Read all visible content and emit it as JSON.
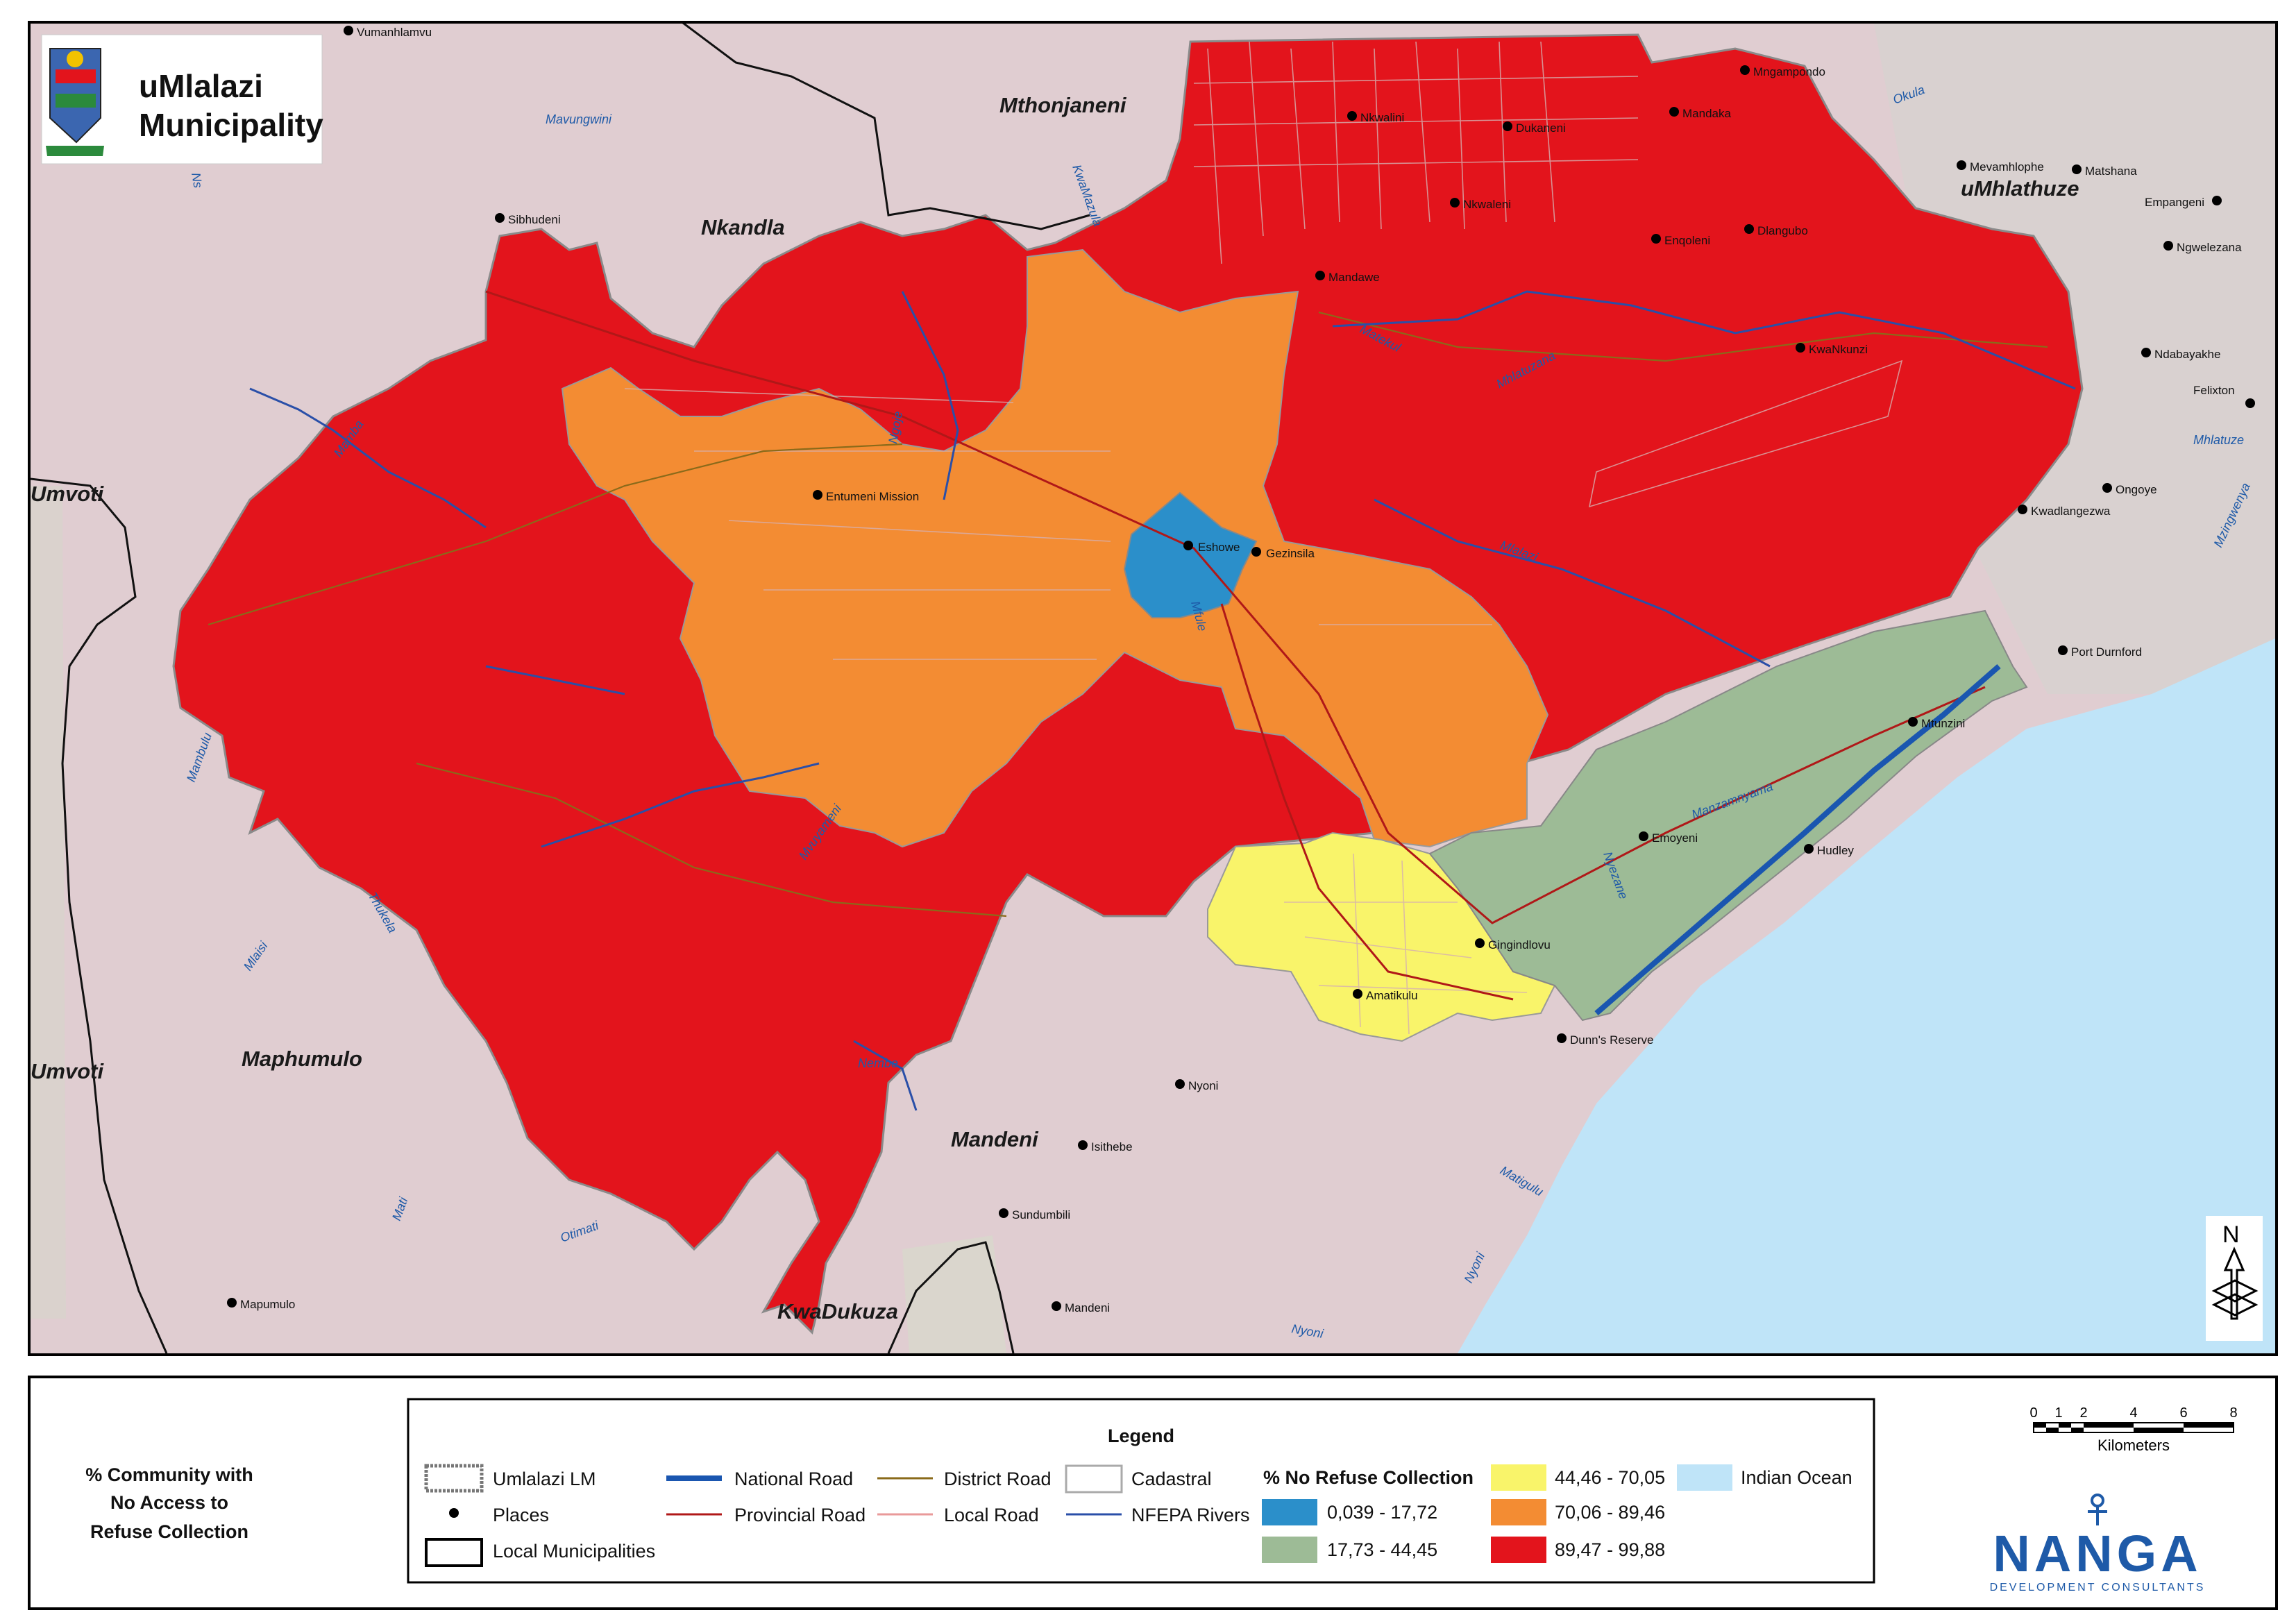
{
  "logo": {
    "title_line1": "uMlalazi",
    "title_line2": "Municipality"
  },
  "municipalities": [
    {
      "name": "Mthonjaneni"
    },
    {
      "name": "Nkandla"
    },
    {
      "name": "uMhlathuze"
    },
    {
      "name": "Umvoti"
    },
    {
      "name": "Umvoti"
    },
    {
      "name": "Maphumulo"
    },
    {
      "name": "Mandeni"
    },
    {
      "name": "KwaDukuza"
    }
  ],
  "places": [
    "Vumanhlamvu",
    "Sibhudeni",
    "Entumeni Mission",
    "Eshowe",
    "Gezinsila",
    "Mandawe",
    "Nkwalini",
    "Dukaneni",
    "Nkwaleni",
    "Mngampondo",
    "Mandaka",
    "Enqoleni",
    "Dlangubo",
    "KwaNkunzi",
    "Mevamhlophe",
    "Matshana",
    "Empangeni",
    "Ngwelezana",
    "Ndabayakhe",
    "Felixton",
    "Ongoye",
    "Kwadlangezwa",
    "Port Durnford",
    "Mtunzini",
    "Emoyeni",
    "Hudley",
    "Gingindlovu",
    "Amatikulu",
    "Dunn's Reserve",
    "Nyoni",
    "Isithebe",
    "Sundumbili",
    "Mandeni",
    "Mapumulo"
  ],
  "rivers": [
    "Mavungwini",
    "KwaMazula",
    "Mamba",
    "Ngoje",
    "Mlalazi",
    "Mhlatuzana",
    "Matekul",
    "Mhlatuze",
    "Mzingwenya",
    "Okula",
    "Mambulu",
    "Thukela",
    "Mvuyameni",
    "Mlaisi",
    "Nembe",
    "Mati",
    "Otimati",
    "Manzamnyama",
    "Nyezane",
    "Matigulu",
    "Nyoni",
    "Mfule",
    "Ns"
  ],
  "title_block": {
    "line1": "% Community with",
    "line2": "No Access to",
    "line3": "Refuse Collection"
  },
  "legend": {
    "title": "Legend",
    "items": [
      {
        "label": "Umlalazi LM"
      },
      {
        "label": "Places"
      },
      {
        "label": "Local Municipalities"
      },
      {
        "label": "National Road"
      },
      {
        "label": "Provincial Road"
      },
      {
        "label": "District Road"
      },
      {
        "label": "Local Road"
      },
      {
        "label": "Cadastral"
      },
      {
        "label": "NFEPA Rivers"
      }
    ],
    "classes_title": "% No Refuse Collection",
    "classes": [
      {
        "label": "0,039 - 17,72",
        "color": "#2b8fca"
      },
      {
        "label": "17,73 - 44,45",
        "color": "#9dbb96"
      },
      {
        "label": "44,46 - 70,05",
        "color": "#f9f46a"
      },
      {
        "label": "70,06 - 89,46",
        "color": "#f38c33"
      },
      {
        "label": "89,47 - 99,88",
        "color": "#e3141c"
      },
      {
        "label": "Indian Ocean",
        "color": "#bfe4f8"
      }
    ]
  },
  "scale_bar": {
    "ticks": [
      "0",
      "1",
      "2",
      "4",
      "6",
      "8"
    ],
    "unit": "Kilometers"
  },
  "north_arrow": {
    "label": "N"
  },
  "company": {
    "name": "NANGA",
    "subtitle": "DEVELOPMENT CONSULTANTS"
  },
  "colors": {
    "background": "#e3cfd3",
    "ocean": "#bfe4f8",
    "class_red": "#e3141c",
    "class_orange": "#f38c33",
    "class_yellow": "#f9f46a",
    "class_green": "#9dbb96",
    "class_blue": "#2b8fca"
  }
}
